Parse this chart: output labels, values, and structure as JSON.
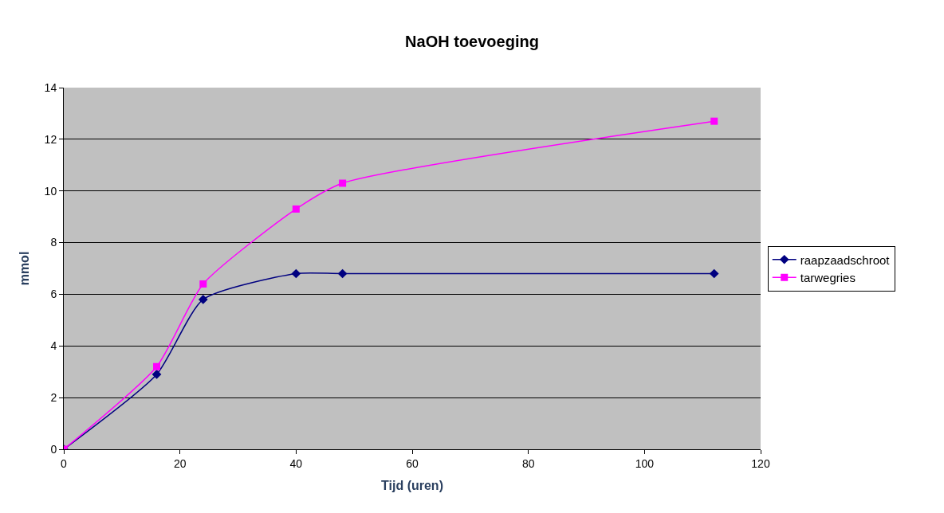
{
  "chart_data": {
    "type": "line",
    "title": "NaOH toevoeging",
    "xlabel": "Tijd (uren)",
    "ylabel": "mmol",
    "x": [
      0,
      16,
      24,
      40,
      48,
      112
    ],
    "series": [
      {
        "name": "raapzaadschroot",
        "color": "#000080",
        "marker": "diamond",
        "values": [
          0,
          2.9,
          5.8,
          6.8,
          6.8,
          6.8
        ]
      },
      {
        "name": "tarwegries",
        "color": "#ff00ff",
        "marker": "square",
        "values": [
          0,
          3.2,
          6.4,
          9.3,
          10.3,
          12.7
        ]
      }
    ],
    "xlim": [
      0,
      120
    ],
    "xticks": [
      0,
      20,
      40,
      60,
      80,
      100,
      120
    ],
    "ylim": [
      0,
      14
    ],
    "yticks": [
      0,
      2,
      4,
      6,
      8,
      10,
      12,
      14
    ],
    "grid": "y",
    "legend": "right",
    "line_style": "solid"
  }
}
